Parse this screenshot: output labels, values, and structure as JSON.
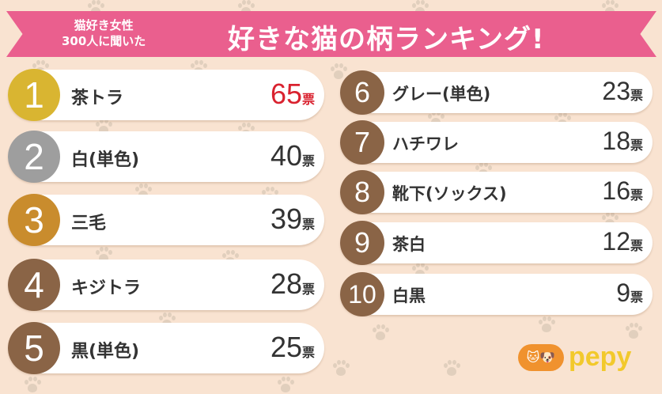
{
  "banner": {
    "subtitle_line1": "猫好き女性",
    "subtitle_line2": "300人に聞いた",
    "title": "好きな猫の柄ランキング!"
  },
  "unit": "票",
  "colors": {
    "banner": "#ea5f8e",
    "gold": "#d9b531",
    "silver": "#9e9e9e",
    "bronze": "#c98c2d",
    "brown": "#8a6446",
    "highlight": "#d9222f"
  },
  "ranking": [
    {
      "rank": "1",
      "name": "茶トラ",
      "votes": "65"
    },
    {
      "rank": "2",
      "name": "白(単色)",
      "votes": "40"
    },
    {
      "rank": "3",
      "name": "三毛",
      "votes": "39"
    },
    {
      "rank": "4",
      "name": "キジトラ",
      "votes": "28"
    },
    {
      "rank": "5",
      "name": "黒(単色)",
      "votes": "25"
    },
    {
      "rank": "6",
      "name": "グレー(単色)",
      "votes": "23"
    },
    {
      "rank": "7",
      "name": "ハチワレ",
      "votes": "18"
    },
    {
      "rank": "8",
      "name": "靴下(ソックス)",
      "votes": "16"
    },
    {
      "rank": "9",
      "name": "茶白",
      "votes": "12"
    },
    {
      "rank": "10",
      "name": "白黒",
      "votes": "9"
    }
  ],
  "logo": {
    "text": "pepy"
  }
}
